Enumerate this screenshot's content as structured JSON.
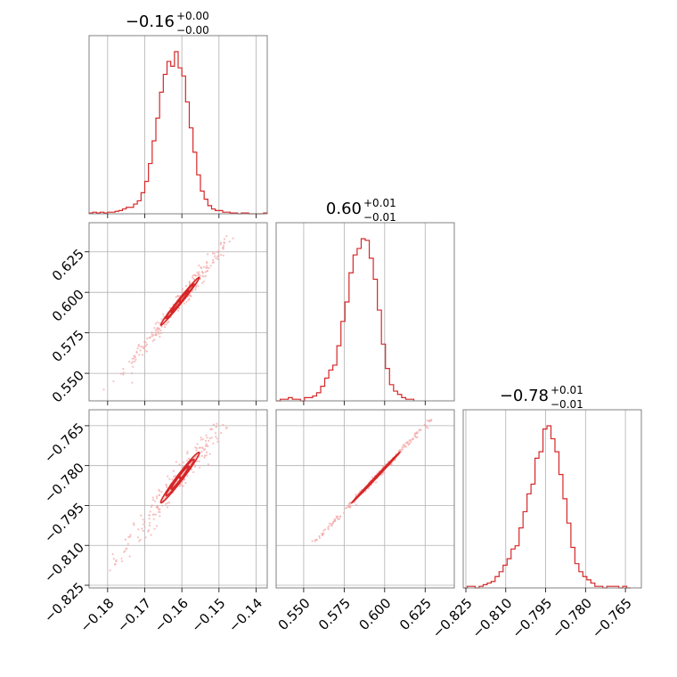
{
  "colors": {
    "series": "#d62728",
    "scatter": "#f4a6a6",
    "fill": "#f6bcbc",
    "grid": "#b0b0b0",
    "frame": "#808080"
  },
  "chart_data": {
    "type": "corner",
    "grid": true,
    "parameters": [
      {
        "title": {
          "value": "−0.16",
          "sup": "+0.00",
          "sub": "−0.00"
        },
        "range": [
          -0.185,
          -0.137
        ],
        "ticks": [
          -0.18,
          -0.17,
          -0.16,
          -0.15,
          -0.14
        ],
        "tick_labels": [
          "−0.18",
          "−0.17",
          "−0.16",
          "−0.15",
          "−0.14"
        ]
      },
      {
        "title": {
          "value": "0.60",
          "sup": "+0.01",
          "sub": "−0.01"
        },
        "range": [
          0.533,
          0.643
        ],
        "ticks": [
          0.55,
          0.575,
          0.6,
          0.625
        ],
        "tick_labels": [
          "0.550",
          "0.575",
          "0.600",
          "0.625"
        ]
      },
      {
        "title": {
          "value": "−0.78",
          "sup": "+0.01",
          "sub": "−0.01"
        },
        "range": [
          -0.826,
          -0.759
        ],
        "ticks": [
          -0.825,
          -0.81,
          -0.795,
          -0.78,
          -0.765
        ],
        "tick_labels": [
          "−0.825",
          "−0.810",
          "−0.795",
          "−0.780",
          "−0.765"
        ]
      }
    ],
    "histograms": [
      {
        "param": 0,
        "bin_edges_start": -0.185,
        "bin_width": 0.001,
        "counts": [
          0.5,
          1,
          0.5,
          1,
          0.5,
          1,
          1,
          1.5,
          2,
          3,
          4,
          4,
          6,
          8,
          13,
          20,
          31,
          45,
          59,
          75,
          86,
          94,
          91,
          100,
          90,
          85,
          69,
          53,
          38,
          24,
          14,
          9,
          5,
          3,
          2,
          2,
          1,
          1,
          0.5,
          0.5,
          0,
          0.5,
          0.5,
          0,
          0,
          0,
          0,
          0.5
        ]
      },
      {
        "param": 1,
        "bin_edges_start": 0.533,
        "bin_width": 0.0025,
        "counts": [
          0,
          1,
          1,
          2,
          1,
          1,
          0,
          2,
          2,
          3,
          5,
          9,
          14,
          19,
          22,
          34,
          49,
          61,
          79,
          90,
          94,
          100,
          99,
          88,
          75,
          56,
          35,
          20,
          10,
          6,
          4,
          2,
          1,
          1
        ]
      },
      {
        "param": 2,
        "bin_edges_start": -0.826,
        "bin_width": 0.0015,
        "counts": [
          0,
          1,
          1,
          0,
          1,
          2,
          3,
          4,
          7,
          10,
          14,
          18,
          24,
          26,
          37,
          47,
          58,
          64,
          80,
          84,
          98,
          100,
          92,
          84,
          70,
          55,
          40,
          25,
          15,
          10,
          7,
          5,
          3,
          1,
          1,
          0,
          1,
          1,
          1,
          0,
          1,
          0
        ]
      }
    ],
    "pairs": [
      {
        "x_param": 0,
        "y_param": 1,
        "levels": [
          {
            "center": [
              -0.1605,
              0.5945
            ],
            "sx": 0.0052,
            "sy": 0.0148,
            "rho": 0.99
          },
          {
            "center": [
              -0.1605,
              0.5945
            ],
            "sx": 0.0038,
            "sy": 0.0106,
            "rho": 0.99
          },
          {
            "center": [
              -0.1605,
              0.5945
            ],
            "sx": 0.0024,
            "sy": 0.0067,
            "rho": 0.99
          }
        ],
        "scatter_extent": {
          "x": [
            -0.182,
            -0.145
          ],
          "y": [
            0.54,
            0.635
          ]
        }
      },
      {
        "x_param": 0,
        "y_param": 2,
        "levels": [
          {
            "center": [
              -0.1605,
              -0.7845
            ],
            "sx": 0.0052,
            "sy": 0.0095,
            "rho": 0.98
          },
          {
            "center": [
              -0.1605,
              -0.7845
            ],
            "sx": 0.0038,
            "sy": 0.0069,
            "rho": 0.98
          },
          {
            "center": [
              -0.1605,
              -0.7845
            ],
            "sx": 0.0024,
            "sy": 0.0044,
            "rho": 0.98
          }
        ],
        "scatter_extent": {
          "x": [
            -0.182,
            -0.145
          ],
          "y": [
            -0.82,
            -0.764
          ]
        }
      },
      {
        "x_param": 1,
        "y_param": 2,
        "levels": [
          {
            "center": [
              0.5945,
              -0.7845
            ],
            "sx": 0.0148,
            "sy": 0.0095,
            "rho": 0.999
          },
          {
            "center": [
              0.5945,
              -0.7845
            ],
            "sx": 0.0106,
            "sy": 0.0069,
            "rho": 0.999
          },
          {
            "center": [
              0.5945,
              -0.7845
            ],
            "sx": 0.0067,
            "sy": 0.0044,
            "rho": 0.999
          }
        ],
        "scatter_extent": {
          "x": [
            0.55,
            0.63
          ],
          "y": [
            -0.81,
            -0.762
          ]
        }
      }
    ]
  }
}
